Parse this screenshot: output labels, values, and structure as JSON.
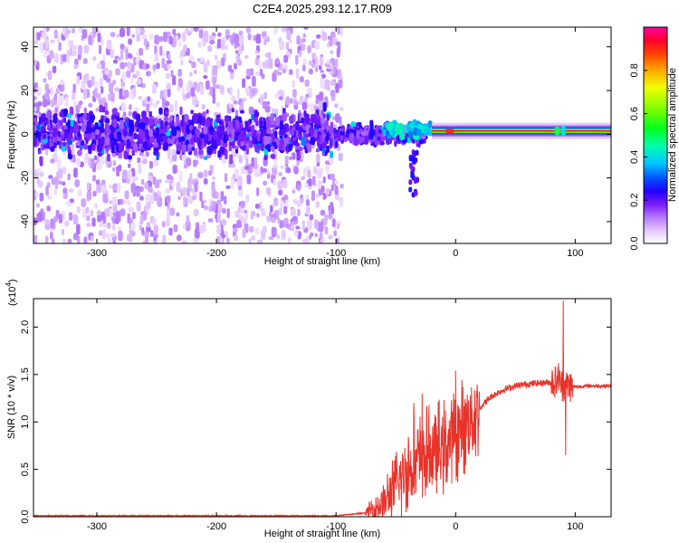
{
  "title": "C2E4.2025.293.12.17.R09",
  "colors": {
    "snr_line": "#e8332a",
    "axis": "#000000",
    "background": "#ffffff",
    "colormap": [
      "#ffffff",
      "#e9d6ff",
      "#c99cff",
      "#9a55ff",
      "#6a00ff",
      "#1f00ff",
      "#0044ff",
      "#00c8ff",
      "#00ff99",
      "#4dff00",
      "#c8ff00",
      "#ffd000",
      "#ff6a00",
      "#ff0000",
      "#ff0088"
    ]
  },
  "chart_data": [
    {
      "type": "heatmap",
      "name": "spectrogram",
      "title": "C2E4.2025.293.12.17.R09",
      "xlabel": "Height of straight line (km)",
      "ylabel": "Frequency (Hz)",
      "xlim": [
        -353,
        130
      ],
      "ylim": [
        -50,
        49
      ],
      "xticks": [
        -300,
        -200,
        -100,
        0,
        100
      ],
      "yticks": [
        -40,
        -20,
        0,
        20,
        40
      ],
      "colorbar": {
        "label": "Normalized spectral amplitude",
        "range": [
          0,
          1
        ],
        "ticks": [
          0.0,
          0.2,
          0.4,
          0.6,
          0.8
        ]
      },
      "features": {
        "scatter_region_x": [
          -353,
          -95
        ],
        "scatter_band_width_hz": 14,
        "carrier_start_x": -20,
        "carrier_frequency_hz": 1.5,
        "carrier_amplitude": 0.95
      }
    },
    {
      "type": "line",
      "name": "snr",
      "xlabel": "Height of straight line (km)",
      "ylabel": "SNR (10 * v/v)",
      "y_multiplier": "(x10",
      "y_multiplier_exp": "4",
      "y_multiplier_close": ")",
      "xlim": [
        -353,
        130
      ],
      "ylim": [
        0,
        2.3
      ],
      "xticks": [
        -300,
        -200,
        -100,
        0,
        100
      ],
      "yticks": [
        0.0,
        0.5,
        1.0,
        1.5,
        2.0
      ],
      "y_unit_scale": 10000,
      "series": [
        {
          "name": "SNR",
          "x": [
            -353,
            -300,
            -200,
            -100,
            -75,
            -60,
            -50,
            -40,
            -30,
            -20,
            -10,
            0,
            10,
            20,
            30,
            40,
            50,
            60,
            70,
            80,
            85,
            90,
            95,
            100,
            110,
            120,
            130
          ],
          "values": [
            0.01,
            0.01,
            0.01,
            0.01,
            0.04,
            0.15,
            0.32,
            0.5,
            0.6,
            0.68,
            0.72,
            0.85,
            1.0,
            1.15,
            1.27,
            1.34,
            1.38,
            1.4,
            1.41,
            1.42,
            1.43,
            1.38,
            1.38,
            1.37,
            1.38,
            1.38,
            1.38
          ],
          "spikes": [
            {
              "x": -35,
              "value": 1.2
            },
            {
              "x": -28,
              "value": 1.3
            },
            {
              "x": 0,
              "value": 1.54
            },
            {
              "x": 90,
              "value": 2.28
            },
            {
              "x": 92,
              "value": 0.65
            },
            {
              "x": 86,
              "value": 1.62
            }
          ]
        }
      ]
    }
  ]
}
